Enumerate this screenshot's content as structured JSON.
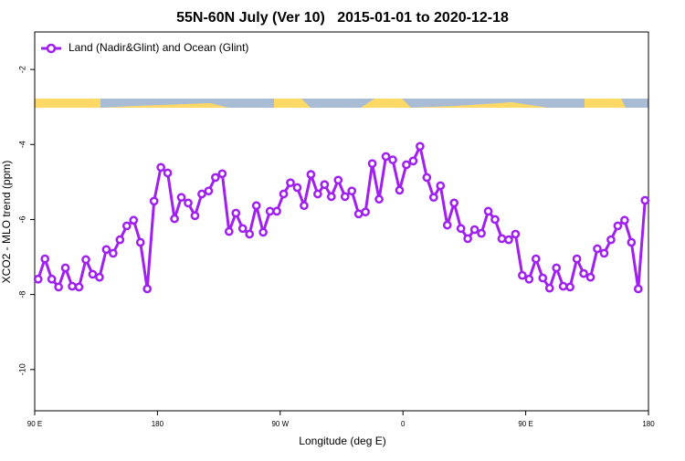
{
  "chart_data": {
    "type": "line",
    "title": "55N-60N July (Ver 10)   2015-01-01 to 2020-12-18",
    "xlabel": "Longitude (deg E)",
    "ylabel": "XCO2 - MLO trend (ppm)",
    "xlim": [
      90,
      540
    ],
    "ylim": [
      -11.1,
      -1.0
    ],
    "xticks": [
      {
        "value": 90,
        "label": "90 E"
      },
      180,
      {
        "value": 270,
        "label": "90 W"
      },
      {
        "value": 360,
        "label": "0"
      },
      {
        "value": 450,
        "label": "90 E"
      },
      {
        "value": 540,
        "label": "180"
      }
    ],
    "yticks": [
      -2,
      -4,
      -6,
      -8,
      -10
    ],
    "legend": "top-left",
    "x": [
      92.5,
      97.5,
      102.5,
      107.5,
      112.5,
      117.5,
      122.5,
      127.5,
      132.5,
      137.5,
      142.5,
      147.5,
      152.5,
      157.5,
      162.5,
      167.5,
      172.5,
      177.5,
      182.5,
      187.5,
      192.5,
      197.5,
      202.5,
      207.5,
      212.5,
      217.5,
      222.5,
      227.5,
      232.5,
      237.5,
      242.5,
      247.5,
      252.5,
      257.5,
      262.5,
      267.5,
      272.5,
      277.5,
      282.5,
      287.5,
      292.5,
      297.5,
      302.5,
      307.5,
      312.5,
      317.5,
      322.5,
      327.5,
      332.5,
      337.5,
      342.5,
      347.5,
      352.5,
      357.5,
      362.5,
      367.5,
      372.5,
      377.5,
      382.5,
      387.5,
      392.5,
      397.5,
      402.5,
      407.5,
      412.5,
      417.5,
      422.5,
      427.5,
      432.5,
      437.5,
      442.5,
      447.5,
      452.5,
      457.5,
      462.5,
      467.5,
      472.5,
      477.5,
      482.5,
      487.5,
      492.5,
      497.5,
      502.5,
      507.5,
      512.5,
      517.5,
      522.5,
      527.5,
      532.5,
      537.5
    ],
    "series": [
      {
        "name": "Land (Nadir&Glint) and Ocean (Glint)",
        "color": "#a020f0",
        "values": [
          -7.59,
          -7.05,
          -7.59,
          -7.8,
          -7.29,
          -7.78,
          -7.8,
          -7.07,
          -7.46,
          -7.54,
          -6.8,
          -6.9,
          -6.54,
          -6.17,
          -6.02,
          -6.61,
          -7.85,
          -5.51,
          -4.61,
          -4.76,
          -5.98,
          -5.41,
          -5.56,
          -5.9,
          -5.32,
          -5.24,
          -4.88,
          -4.78,
          -6.32,
          -5.83,
          -6.24,
          -6.39,
          -5.63,
          -6.34,
          -5.78,
          -5.78,
          -5.32,
          -5.02,
          -5.15,
          -5.63,
          -4.8,
          -5.32,
          -5.07,
          -5.39,
          -4.95,
          -5.39,
          -5.24,
          -5.85,
          -5.8,
          -4.51,
          -5.46,
          -4.32,
          -4.41,
          -5.22,
          -4.54,
          -4.44,
          -4.05,
          -4.88,
          -5.41,
          -5.1,
          -6.15,
          -5.56,
          -6.24,
          -6.51,
          -6.27,
          -6.37,
          -5.78,
          -6.0,
          -6.51,
          -6.54,
          -6.39,
          -7.49,
          -7.59,
          -7.05,
          -7.56,
          -7.83,
          -7.29,
          -7.78,
          -7.8,
          -7.05,
          -7.44,
          -7.54,
          -6.78,
          -6.9,
          -6.54,
          -6.17,
          -6.02,
          -6.61,
          -7.85,
          -5.49
        ]
      }
    ]
  }
}
